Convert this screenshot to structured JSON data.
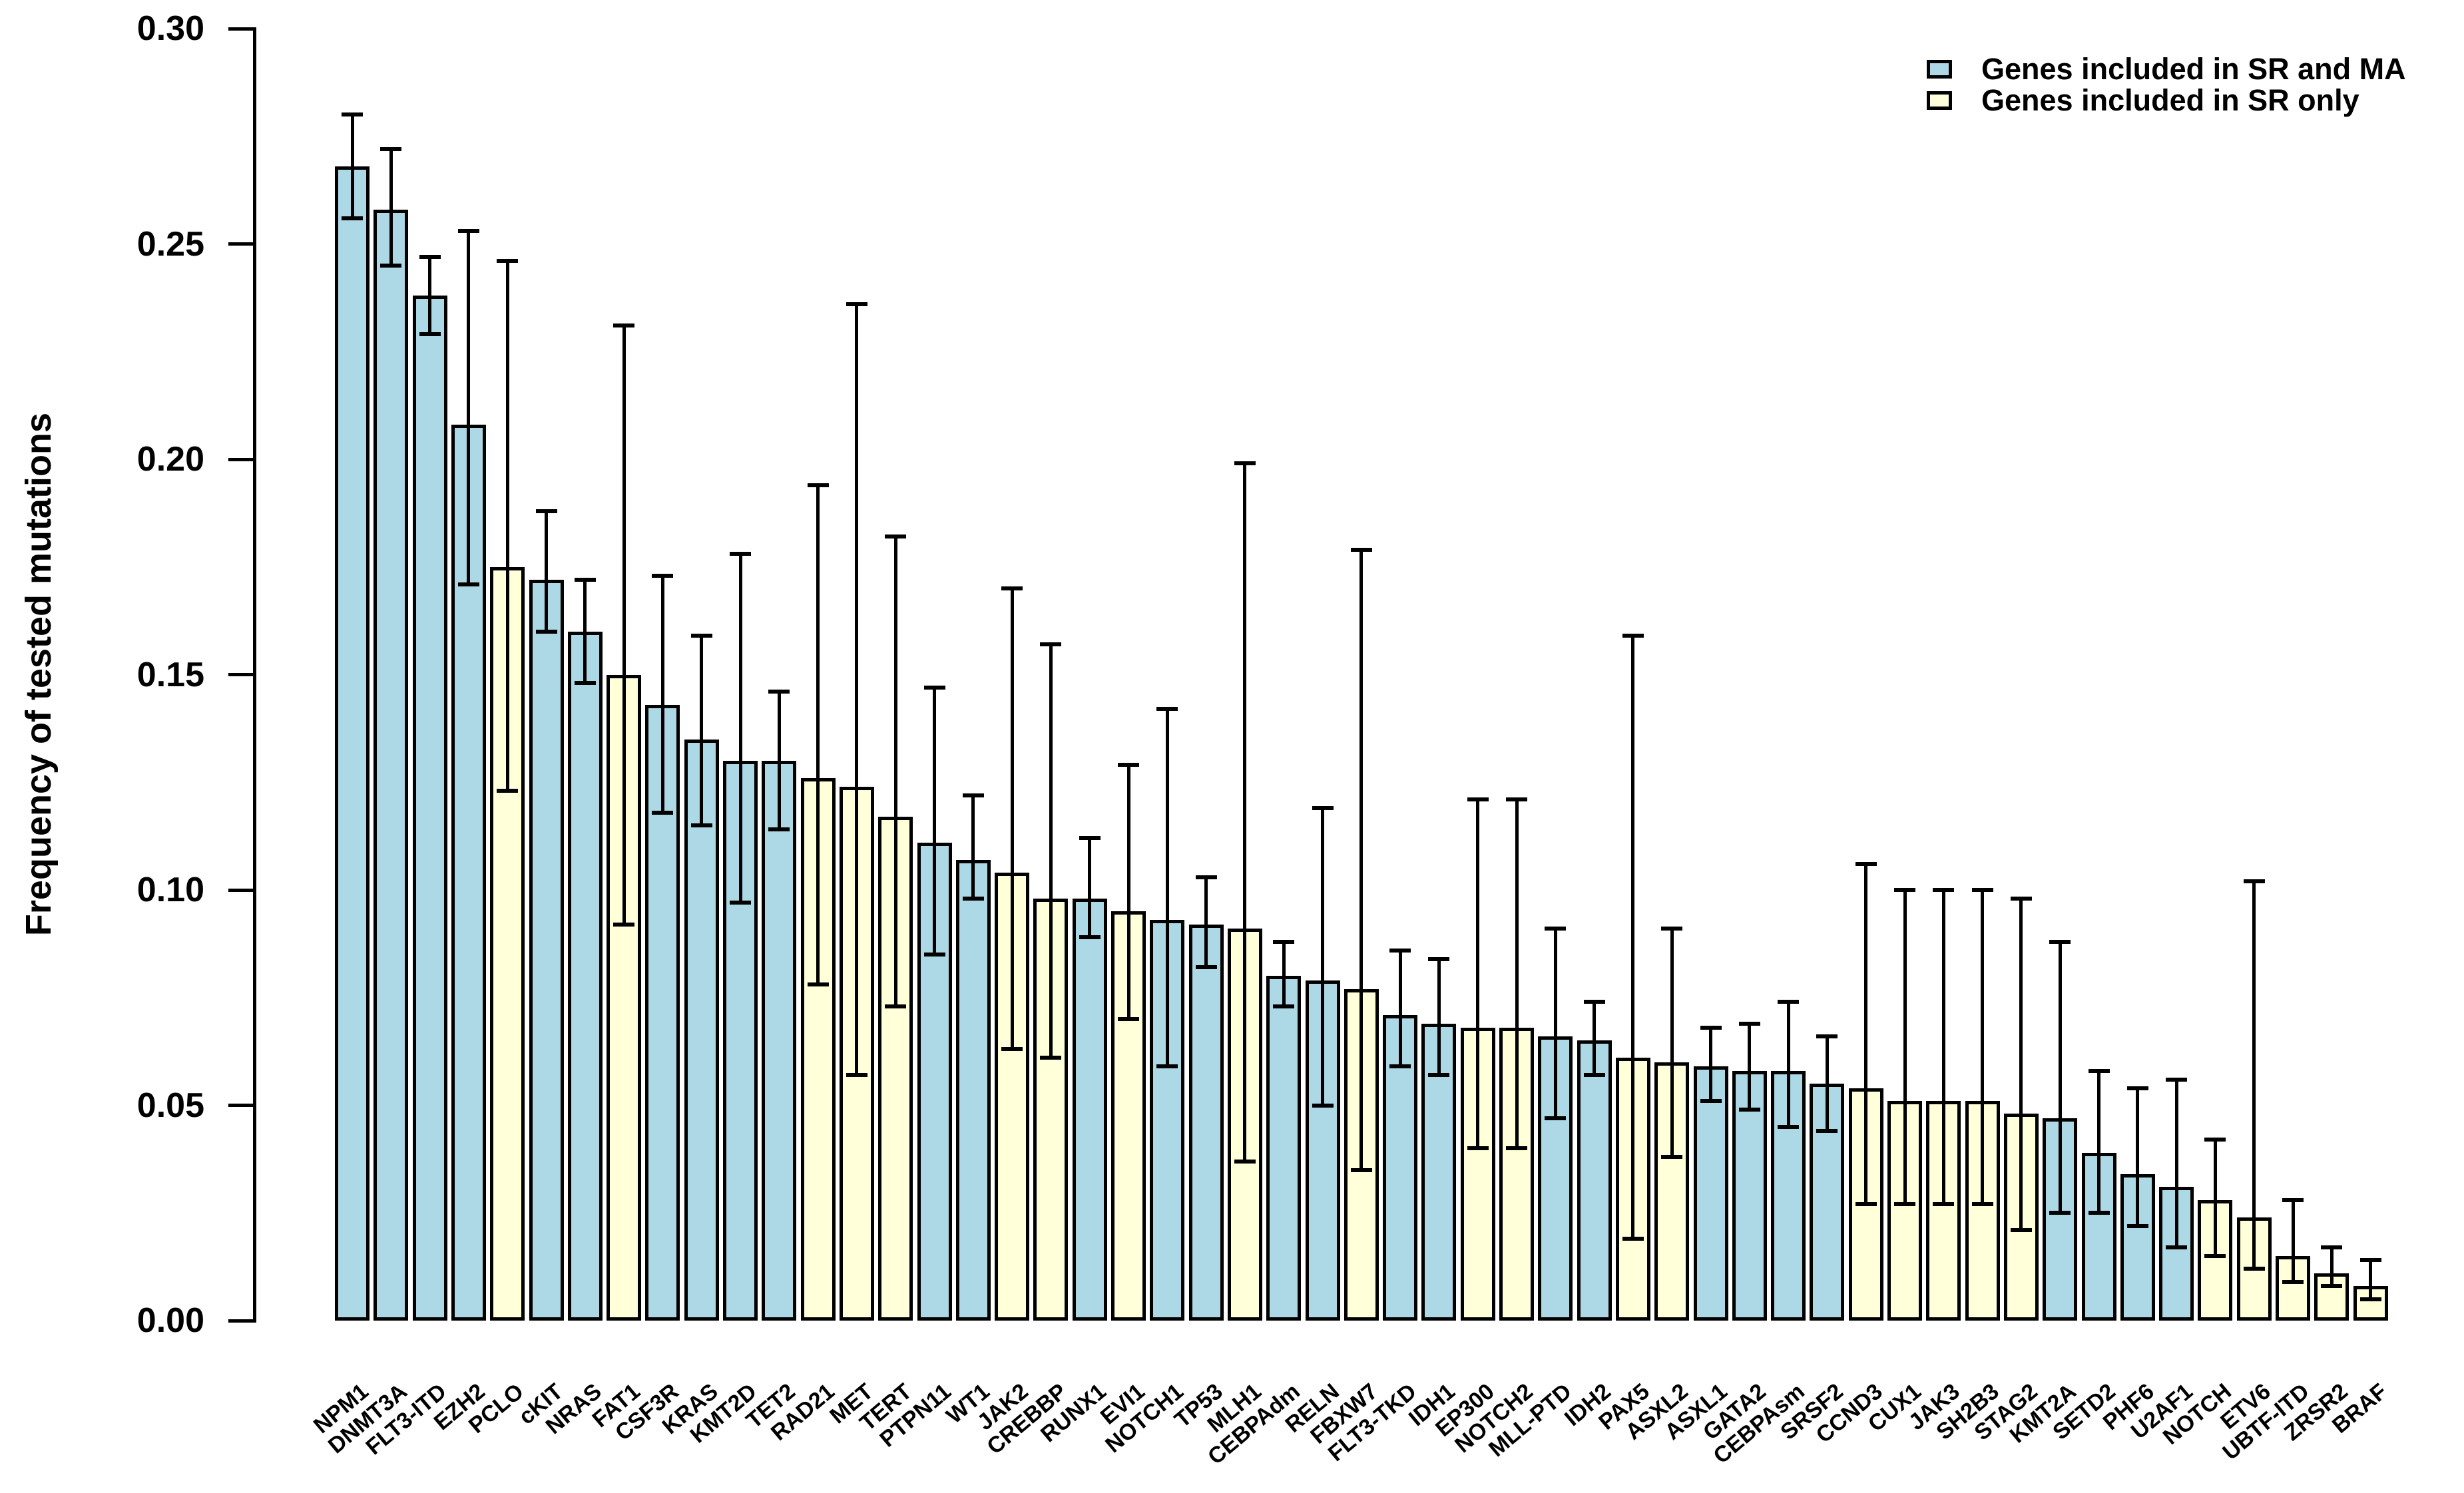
{
  "chart_data": {
    "type": "bar",
    "title": "",
    "xlabel": "",
    "ylabel": "Frequency of tested mutations",
    "ylim": [
      0,
      0.3
    ],
    "yticks": [
      "0.00",
      "0.05",
      "0.10",
      "0.15",
      "0.20",
      "0.25",
      "0.30"
    ],
    "grid": false,
    "legend": {
      "position": "top-right",
      "entries": [
        {
          "label": "Genes included in SR and MA",
          "group": "sr_ma",
          "color": "#ADD8E6"
        },
        {
          "label": "Genes included in SR only",
          "group": "sr_only",
          "color": "#FFFFD9"
        }
      ]
    },
    "bars": [
      {
        "gene": "NPM1",
        "value": 0.268,
        "ci_low": 0.256,
        "ci_high": 0.28,
        "group": "sr_ma"
      },
      {
        "gene": "DNMT3A",
        "value": 0.258,
        "ci_low": 0.245,
        "ci_high": 0.272,
        "group": "sr_ma"
      },
      {
        "gene": "FLT3-ITD",
        "value": 0.238,
        "ci_low": 0.229,
        "ci_high": 0.247,
        "group": "sr_ma"
      },
      {
        "gene": "EZH2",
        "value": 0.208,
        "ci_low": 0.171,
        "ci_high": 0.253,
        "group": "sr_ma"
      },
      {
        "gene": "PCLO",
        "value": 0.175,
        "ci_low": 0.123,
        "ci_high": 0.246,
        "group": "sr_only"
      },
      {
        "gene": "cKIT",
        "value": 0.172,
        "ci_low": 0.16,
        "ci_high": 0.188,
        "group": "sr_ma"
      },
      {
        "gene": "NRAS",
        "value": 0.16,
        "ci_low": 0.148,
        "ci_high": 0.172,
        "group": "sr_ma"
      },
      {
        "gene": "FAT1",
        "value": 0.15,
        "ci_low": 0.092,
        "ci_high": 0.231,
        "group": "sr_only"
      },
      {
        "gene": "CSF3R",
        "value": 0.143,
        "ci_low": 0.118,
        "ci_high": 0.173,
        "group": "sr_ma"
      },
      {
        "gene": "KRAS",
        "value": 0.135,
        "ci_low": 0.115,
        "ci_high": 0.159,
        "group": "sr_ma"
      },
      {
        "gene": "KMT2D",
        "value": 0.13,
        "ci_low": 0.097,
        "ci_high": 0.178,
        "group": "sr_ma"
      },
      {
        "gene": "TET2",
        "value": 0.13,
        "ci_low": 0.114,
        "ci_high": 0.146,
        "group": "sr_ma"
      },
      {
        "gene": "RAD21",
        "value": 0.126,
        "ci_low": 0.078,
        "ci_high": 0.194,
        "group": "sr_only"
      },
      {
        "gene": "MET",
        "value": 0.124,
        "ci_low": 0.057,
        "ci_high": 0.236,
        "group": "sr_only"
      },
      {
        "gene": "TERT",
        "value": 0.117,
        "ci_low": 0.073,
        "ci_high": 0.182,
        "group": "sr_only"
      },
      {
        "gene": "PTPN11",
        "value": 0.111,
        "ci_low": 0.085,
        "ci_high": 0.147,
        "group": "sr_ma"
      },
      {
        "gene": "WT1",
        "value": 0.107,
        "ci_low": 0.098,
        "ci_high": 0.122,
        "group": "sr_ma"
      },
      {
        "gene": "JAK2",
        "value": 0.104,
        "ci_low": 0.063,
        "ci_high": 0.17,
        "group": "sr_only"
      },
      {
        "gene": "CREBBP",
        "value": 0.098,
        "ci_low": 0.061,
        "ci_high": 0.157,
        "group": "sr_only"
      },
      {
        "gene": "RUNX1",
        "value": 0.098,
        "ci_low": 0.089,
        "ci_high": 0.112,
        "group": "sr_ma"
      },
      {
        "gene": "EVI1",
        "value": 0.095,
        "ci_low": 0.07,
        "ci_high": 0.129,
        "group": "sr_only"
      },
      {
        "gene": "NOTCH1",
        "value": 0.093,
        "ci_low": 0.059,
        "ci_high": 0.142,
        "group": "sr_ma"
      },
      {
        "gene": "TP53",
        "value": 0.092,
        "ci_low": 0.082,
        "ci_high": 0.103,
        "group": "sr_ma"
      },
      {
        "gene": "MLH1",
        "value": 0.091,
        "ci_low": 0.037,
        "ci_high": 0.199,
        "group": "sr_only"
      },
      {
        "gene": "CEBPAdm",
        "value": 0.08,
        "ci_low": 0.073,
        "ci_high": 0.088,
        "group": "sr_ma"
      },
      {
        "gene": "RELN",
        "value": 0.079,
        "ci_low": 0.05,
        "ci_high": 0.119,
        "group": "sr_ma"
      },
      {
        "gene": "FBXW7",
        "value": 0.077,
        "ci_low": 0.035,
        "ci_high": 0.179,
        "group": "sr_only"
      },
      {
        "gene": "FLT3-TKD",
        "value": 0.071,
        "ci_low": 0.059,
        "ci_high": 0.086,
        "group": "sr_ma"
      },
      {
        "gene": "IDH1",
        "value": 0.069,
        "ci_low": 0.057,
        "ci_high": 0.084,
        "group": "sr_ma"
      },
      {
        "gene": "EP300",
        "value": 0.068,
        "ci_low": 0.04,
        "ci_high": 0.121,
        "group": "sr_only"
      },
      {
        "gene": "NOTCH2",
        "value": 0.068,
        "ci_low": 0.04,
        "ci_high": 0.121,
        "group": "sr_only"
      },
      {
        "gene": "MLL-PTD",
        "value": 0.066,
        "ci_low": 0.047,
        "ci_high": 0.091,
        "group": "sr_ma"
      },
      {
        "gene": "IDH2",
        "value": 0.065,
        "ci_low": 0.057,
        "ci_high": 0.074,
        "group": "sr_ma"
      },
      {
        "gene": "PAX5",
        "value": 0.061,
        "ci_low": 0.019,
        "ci_high": 0.159,
        "group": "sr_only"
      },
      {
        "gene": "ASXL2",
        "value": 0.06,
        "ci_low": 0.038,
        "ci_high": 0.091,
        "group": "sr_only"
      },
      {
        "gene": "ASXL1",
        "value": 0.059,
        "ci_low": 0.051,
        "ci_high": 0.068,
        "group": "sr_ma"
      },
      {
        "gene": "GATA2",
        "value": 0.058,
        "ci_low": 0.049,
        "ci_high": 0.069,
        "group": "sr_ma"
      },
      {
        "gene": "CEBPAsm",
        "value": 0.058,
        "ci_low": 0.045,
        "ci_high": 0.074,
        "group": "sr_ma"
      },
      {
        "gene": "SRSF2",
        "value": 0.055,
        "ci_low": 0.044,
        "ci_high": 0.066,
        "group": "sr_ma"
      },
      {
        "gene": "CCND3",
        "value": 0.054,
        "ci_low": 0.027,
        "ci_high": 0.106,
        "group": "sr_only"
      },
      {
        "gene": "CUX1",
        "value": 0.051,
        "ci_low": 0.027,
        "ci_high": 0.1,
        "group": "sr_only"
      },
      {
        "gene": "JAK3",
        "value": 0.051,
        "ci_low": 0.027,
        "ci_high": 0.1,
        "group": "sr_only"
      },
      {
        "gene": "SH2B3",
        "value": 0.051,
        "ci_low": 0.027,
        "ci_high": 0.1,
        "group": "sr_only"
      },
      {
        "gene": "STAG2",
        "value": 0.048,
        "ci_low": 0.021,
        "ci_high": 0.098,
        "group": "sr_only"
      },
      {
        "gene": "KMT2A",
        "value": 0.047,
        "ci_low": 0.025,
        "ci_high": 0.088,
        "group": "sr_ma"
      },
      {
        "gene": "SETD2",
        "value": 0.039,
        "ci_low": 0.025,
        "ci_high": 0.058,
        "group": "sr_ma"
      },
      {
        "gene": "PHF6",
        "value": 0.034,
        "ci_low": 0.022,
        "ci_high": 0.054,
        "group": "sr_ma"
      },
      {
        "gene": "U2AF1",
        "value": 0.031,
        "ci_low": 0.017,
        "ci_high": 0.056,
        "group": "sr_ma"
      },
      {
        "gene": "NOTCH",
        "value": 0.028,
        "ci_low": 0.015,
        "ci_high": 0.042,
        "group": "sr_only"
      },
      {
        "gene": "ETV6",
        "value": 0.024,
        "ci_low": 0.012,
        "ci_high": 0.102,
        "group": "sr_only"
      },
      {
        "gene": "UBTF-ITD",
        "value": 0.015,
        "ci_low": 0.009,
        "ci_high": 0.028,
        "group": "sr_only"
      },
      {
        "gene": "ZRSR2",
        "value": 0.011,
        "ci_low": 0.008,
        "ci_high": 0.017,
        "group": "sr_only"
      },
      {
        "gene": "BRAF",
        "value": 0.008,
        "ci_low": 0.005,
        "ci_high": 0.014,
        "group": "sr_only"
      }
    ]
  },
  "colors": {
    "sr_ma": "#ADD8E6",
    "sr_only": "#FFFFD9",
    "axis": "#000000",
    "background": "#FFFFFF"
  }
}
